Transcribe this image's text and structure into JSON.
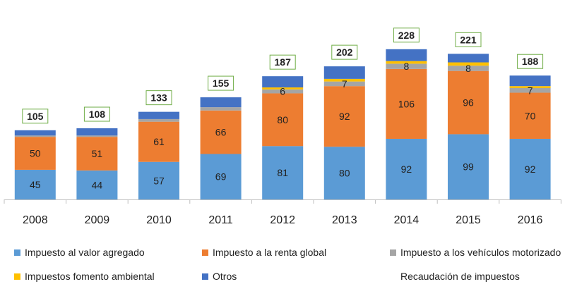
{
  "chart_data": {
    "type": "bar",
    "stacked": true,
    "categories": [
      "2008",
      "2009",
      "2010",
      "2011",
      "2012",
      "2013",
      "2014",
      "2015",
      "2016"
    ],
    "series": [
      {
        "name": "Impuesto al valor agregado",
        "color": "#5b9bd5",
        "values": [
          45,
          44,
          57,
          69,
          81,
          80,
          92,
          99,
          92
        ],
        "labels": [
          "45",
          "44",
          "57",
          "69",
          "81",
          "80",
          "92",
          "99",
          "92"
        ]
      },
      {
        "name": "Impuesto a la renta global",
        "color": "#ed7d31",
        "values": [
          50,
          51,
          61,
          66,
          80,
          92,
          106,
          96,
          70
        ],
        "labels": [
          "50",
          "51",
          "61",
          "66",
          "80",
          "92",
          "106",
          "96",
          "70"
        ]
      },
      {
        "name": "Impuesto a los vehículos motorizado",
        "color": "#a5a5a5",
        "values": [
          2,
          2,
          4,
          5,
          6,
          7,
          8,
          8,
          7
        ],
        "labels": [
          "",
          "",
          "",
          "",
          "6",
          "7",
          "8",
          "8",
          "7"
        ]
      },
      {
        "name": "Impuestos fomento ambiental",
        "color": "#ffc000",
        "values": [
          0,
          0,
          0,
          0,
          3,
          4,
          4,
          5,
          3
        ],
        "labels": [
          "",
          "",
          "",
          "",
          "",
          "",
          "",
          "",
          ""
        ]
      },
      {
        "name": "Otros",
        "color": "#4472c4",
        "values": [
          8,
          11,
          11,
          15,
          17,
          19,
          18,
          13,
          16
        ],
        "labels": [
          "",
          "",
          "",
          "",
          "",
          "",
          "",
          "",
          ""
        ]
      }
    ],
    "totals": [
      105,
      108,
      133,
      155,
      187,
      202,
      228,
      221,
      188
    ],
    "total_labels": [
      "105",
      "108",
      "133",
      "155",
      "187",
      "202",
      "228",
      "221",
      "188"
    ],
    "totals_series_name": "Recaudación de impuestos",
    "totals_box_color": "#70ad47",
    "ylim": [
      0,
      240
    ],
    "grid": false,
    "legend_position": "bottom"
  }
}
